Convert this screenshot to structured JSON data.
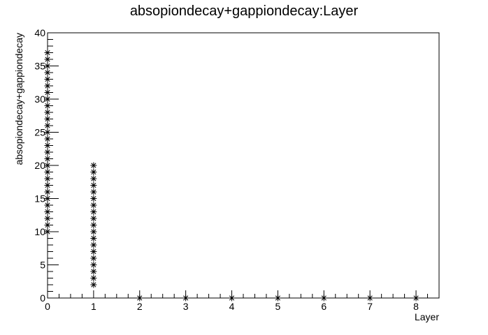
{
  "chart_data": {
    "type": "scatter",
    "title": "absopiondecay+gappiondecay:Layer",
    "xlabel": "Layer",
    "ylabel": "absopiondecay+gappiondecay",
    "xlim": [
      0,
      8.5
    ],
    "ylim": [
      0,
      40
    ],
    "grid": false,
    "legend": "none",
    "marker": "asterisk",
    "marker_color": "#000000",
    "x_ticks": [
      "0",
      "1",
      "2",
      "3",
      "4",
      "5",
      "6",
      "7",
      "8"
    ],
    "y_ticks": [
      "0",
      "5",
      "10",
      "15",
      "20",
      "25",
      "30",
      "35",
      "40"
    ],
    "points": [
      {
        "x": 0,
        "y": 10
      },
      {
        "x": 0,
        "y": 11
      },
      {
        "x": 0,
        "y": 12
      },
      {
        "x": 0,
        "y": 13
      },
      {
        "x": 0,
        "y": 14
      },
      {
        "x": 0,
        "y": 15
      },
      {
        "x": 0,
        "y": 16
      },
      {
        "x": 0,
        "y": 17
      },
      {
        "x": 0,
        "y": 18
      },
      {
        "x": 0,
        "y": 19
      },
      {
        "x": 0,
        "y": 20
      },
      {
        "x": 0,
        "y": 21
      },
      {
        "x": 0,
        "y": 22
      },
      {
        "x": 0,
        "y": 23
      },
      {
        "x": 0,
        "y": 24
      },
      {
        "x": 0,
        "y": 25
      },
      {
        "x": 0,
        "y": 26
      },
      {
        "x": 0,
        "y": 27
      },
      {
        "x": 0,
        "y": 28
      },
      {
        "x": 0,
        "y": 29
      },
      {
        "x": 0,
        "y": 30
      },
      {
        "x": 0,
        "y": 31
      },
      {
        "x": 0,
        "y": 32
      },
      {
        "x": 0,
        "y": 33
      },
      {
        "x": 0,
        "y": 34
      },
      {
        "x": 0,
        "y": 35
      },
      {
        "x": 0,
        "y": 36
      },
      {
        "x": 0,
        "y": 37
      },
      {
        "x": 1,
        "y": 2
      },
      {
        "x": 1,
        "y": 3
      },
      {
        "x": 1,
        "y": 4
      },
      {
        "x": 1,
        "y": 5
      },
      {
        "x": 1,
        "y": 6
      },
      {
        "x": 1,
        "y": 7
      },
      {
        "x": 1,
        "y": 8
      },
      {
        "x": 1,
        "y": 9
      },
      {
        "x": 1,
        "y": 10
      },
      {
        "x": 1,
        "y": 11
      },
      {
        "x": 1,
        "y": 12
      },
      {
        "x": 1,
        "y": 13
      },
      {
        "x": 1,
        "y": 14
      },
      {
        "x": 1,
        "y": 15
      },
      {
        "x": 1,
        "y": 16
      },
      {
        "x": 1,
        "y": 17
      },
      {
        "x": 1,
        "y": 18
      },
      {
        "x": 1,
        "y": 19
      },
      {
        "x": 1,
        "y": 20
      },
      {
        "x": 2,
        "y": 0
      },
      {
        "x": 3,
        "y": 0
      },
      {
        "x": 4,
        "y": 0
      },
      {
        "x": 5,
        "y": 0
      },
      {
        "x": 6,
        "y": 0
      },
      {
        "x": 7,
        "y": 0
      },
      {
        "x": 8,
        "y": 0
      }
    ]
  }
}
